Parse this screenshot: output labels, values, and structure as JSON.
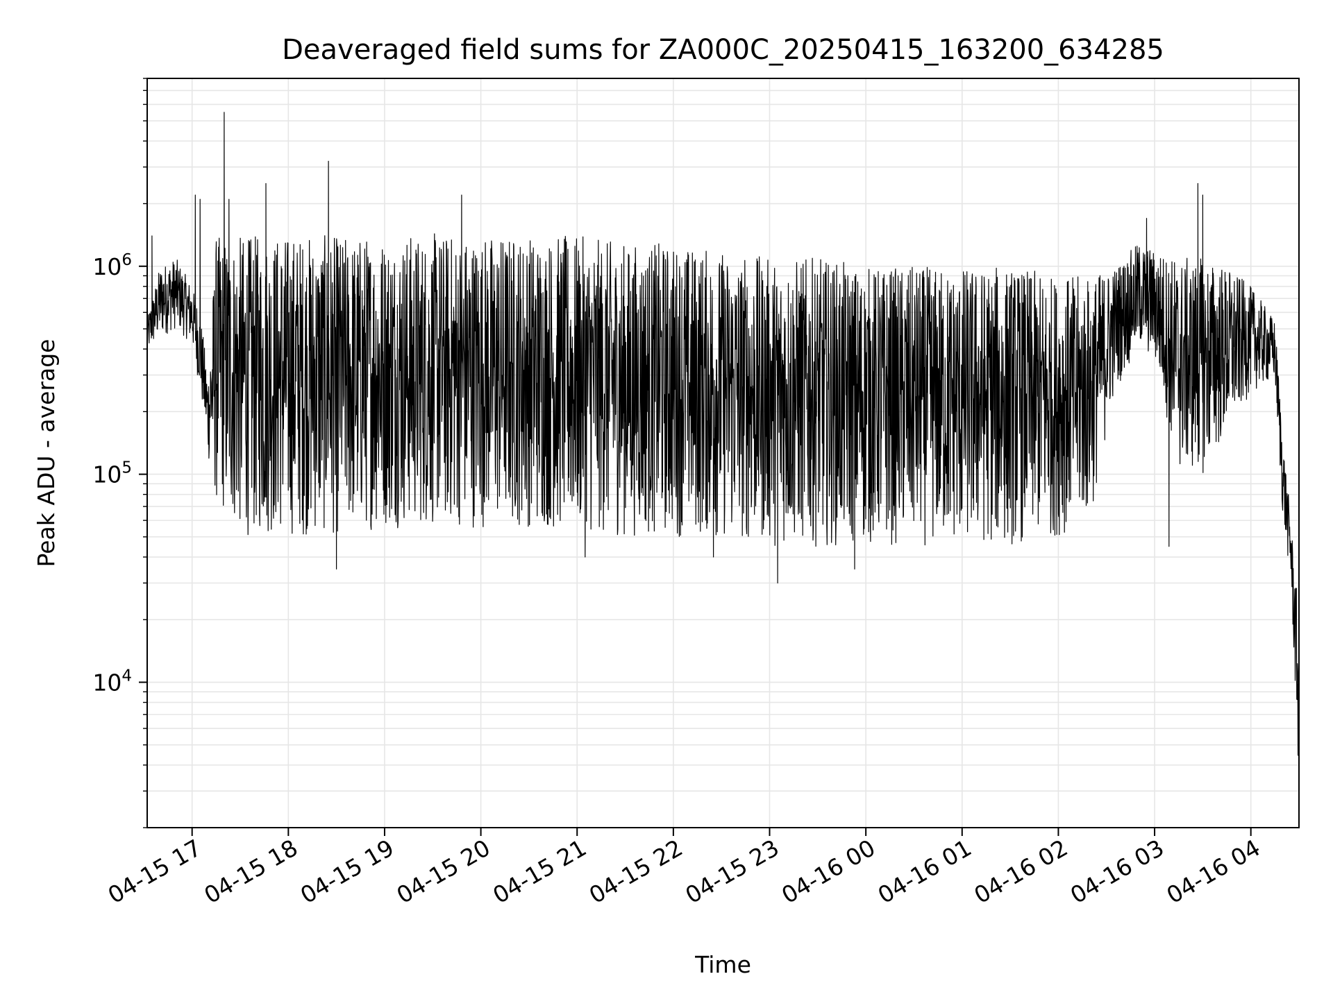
{
  "chart_data": {
    "type": "line",
    "title": "Deaveraged field sums for ZA000C_20250415_163200_634285",
    "xlabel": "Time",
    "ylabel": "Peak ADU - average",
    "yscale": "log",
    "grid": true,
    "grid_minor": true,
    "legend": "none",
    "line_color": "#000000",
    "grid_color": "#e6e6e6",
    "xlim": [
      "2025-04-15 16:32",
      "2025-04-16 04:30"
    ],
    "ylim": [
      2000,
      8000000
    ],
    "xticks": [
      {
        "value": "2025-04-15 17:00",
        "label": "04-15 17"
      },
      {
        "value": "2025-04-15 18:00",
        "label": "04-15 18"
      },
      {
        "value": "2025-04-15 19:00",
        "label": "04-15 19"
      },
      {
        "value": "2025-04-15 20:00",
        "label": "04-15 20"
      },
      {
        "value": "2025-04-15 21:00",
        "label": "04-15 21"
      },
      {
        "value": "2025-04-15 22:00",
        "label": "04-15 22"
      },
      {
        "value": "2025-04-15 23:00",
        "label": "04-15 23"
      },
      {
        "value": "2025-04-16 00:00",
        "label": "04-16 00"
      },
      {
        "value": "2025-04-16 01:00",
        "label": "04-16 01"
      },
      {
        "value": "2025-04-16 02:00",
        "label": "04-16 02"
      },
      {
        "value": "2025-04-16 03:00",
        "label": "04-16 03"
      },
      {
        "value": "2025-04-16 04:00",
        "label": "04-16 04"
      }
    ],
    "yticks": [
      {
        "value": 10000,
        "base": "10",
        "exp": "4"
      },
      {
        "value": 100000,
        "base": "10",
        "exp": "5"
      },
      {
        "value": 1000000,
        "base": "10",
        "exp": "6"
      }
    ],
    "series": [
      {
        "envelope": {
          "columns": [
            "time",
            "low",
            "high"
          ],
          "rows": [
            [
              "2025-04-15 16:32",
              380000,
              560000
            ],
            [
              "2025-04-15 16:40",
              450000,
              1000000
            ],
            [
              "2025-04-15 16:50",
              500000,
              1100000
            ],
            [
              "2025-04-15 17:00",
              420000,
              800000
            ],
            [
              "2025-04-15 17:05",
              250000,
              600000
            ],
            [
              "2025-04-15 17:10",
              120000,
              300000
            ],
            [
              "2025-04-15 17:15",
              70000,
              1400000
            ],
            [
              "2025-04-15 17:30",
              50000,
              1400000
            ],
            [
              "2025-04-15 18:00",
              50000,
              1450000
            ],
            [
              "2025-04-15 18:30",
              50000,
              1400000
            ],
            [
              "2025-04-15 19:00",
              55000,
              1450000
            ],
            [
              "2025-04-15 19:30",
              55000,
              1450000
            ],
            [
              "2025-04-15 20:00",
              55000,
              1450000
            ],
            [
              "2025-04-15 20:30",
              55000,
              1450000
            ],
            [
              "2025-04-15 21:00",
              50000,
              1400000
            ],
            [
              "2025-04-15 21:30",
              50000,
              1300000
            ],
            [
              "2025-04-15 22:00",
              50000,
              1300000
            ],
            [
              "2025-04-15 22:30",
              48000,
              1200000
            ],
            [
              "2025-04-15 23:00",
              45000,
              1100000
            ],
            [
              "2025-04-15 23:30",
              45000,
              1100000
            ],
            [
              "2025-04-16 00:00",
              45000,
              1000000
            ],
            [
              "2025-04-16 00:30",
              45000,
              1000000
            ],
            [
              "2025-04-16 01:00",
              45000,
              1000000
            ],
            [
              "2025-04-16 01:30",
              45000,
              1000000
            ],
            [
              "2025-04-16 02:00",
              50000,
              900000
            ],
            [
              "2025-04-16 02:20",
              60000,
              900000
            ],
            [
              "2025-04-16 02:35",
              250000,
              1000000
            ],
            [
              "2025-04-16 02:50",
              400000,
              1300000
            ],
            [
              "2025-04-16 03:00",
              350000,
              1200000
            ],
            [
              "2025-04-16 03:15",
              100000,
              1100000
            ],
            [
              "2025-04-16 03:30",
              100000,
              1100000
            ],
            [
              "2025-04-16 03:45",
              150000,
              1000000
            ],
            [
              "2025-04-16 04:00",
              250000,
              800000
            ],
            [
              "2025-04-16 04:15",
              280000,
              550000
            ],
            [
              "2025-04-16 04:20",
              60000,
              150000
            ],
            [
              "2025-04-16 04:25",
              30000,
              60000
            ],
            [
              "2025-04-16 04:30",
              3000,
              20000
            ]
          ]
        },
        "spikes": [
          {
            "time": "2025-04-15 16:35",
            "value": 1400000
          },
          {
            "time": "2025-04-15 17:02",
            "value": 2200000
          },
          {
            "time": "2025-04-15 17:05",
            "value": 2100000
          },
          {
            "time": "2025-04-15 17:20",
            "value": 5500000
          },
          {
            "time": "2025-04-15 17:23",
            "value": 2100000
          },
          {
            "time": "2025-04-15 17:46",
            "value": 2500000
          },
          {
            "time": "2025-04-15 18:25",
            "value": 3200000
          },
          {
            "time": "2025-04-15 19:48",
            "value": 2200000
          },
          {
            "time": "2025-04-16 02:55",
            "value": 1700000
          },
          {
            "time": "2025-04-16 03:27",
            "value": 2500000
          },
          {
            "time": "2025-04-16 03:30",
            "value": 2200000
          }
        ],
        "dips": [
          {
            "time": "2025-04-15 18:30",
            "value": 35000
          },
          {
            "time": "2025-04-15 21:05",
            "value": 40000
          },
          {
            "time": "2025-04-15 22:25",
            "value": 40000
          },
          {
            "time": "2025-04-15 23:05",
            "value": 30000
          },
          {
            "time": "2025-04-15 23:53",
            "value": 35000
          },
          {
            "time": "2025-04-16 03:09",
            "value": 45000
          }
        ]
      }
    ]
  }
}
